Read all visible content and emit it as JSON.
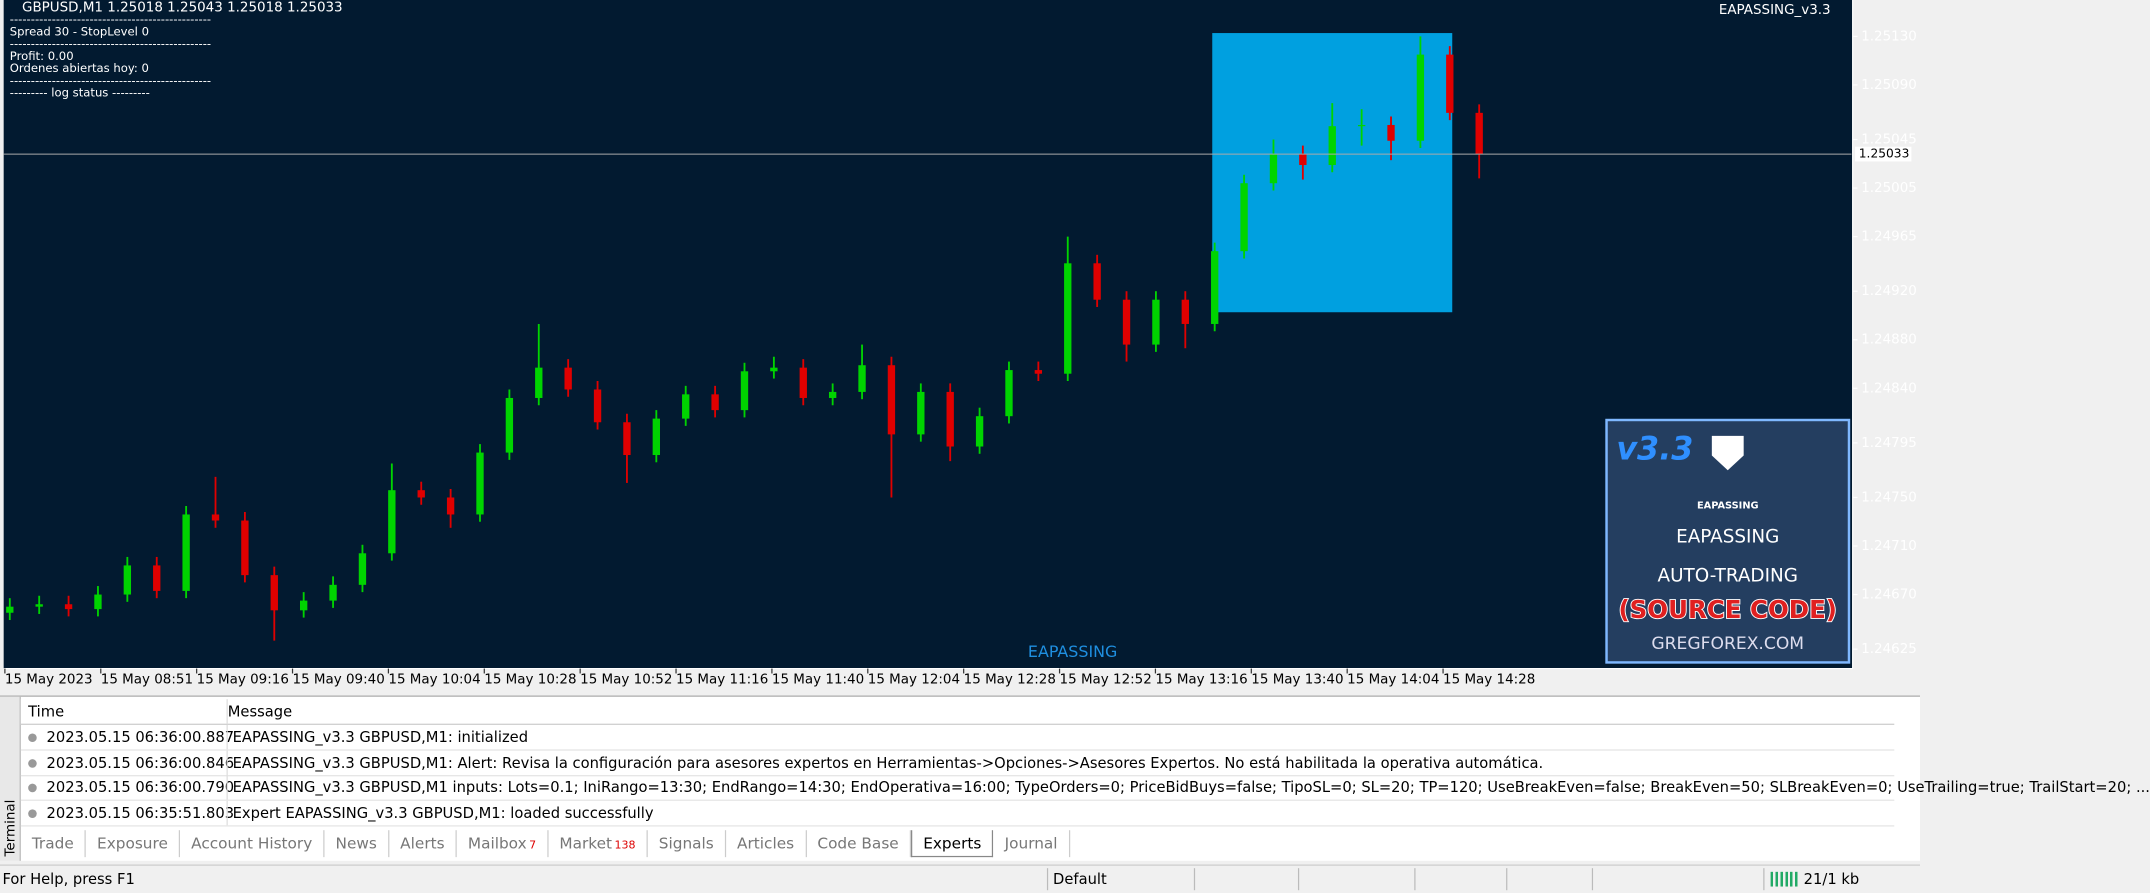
{
  "chart_data": {
    "type": "candlestick",
    "symbol_header": "GBPUSD,M1  1.25018 1.25043 1.25018 1.25033",
    "ea_name": "EAPASSING_v3.3",
    "comment_lines": [
      "------------------------------------------------",
      "Spread 30 - StopLevel 0",
      "------------------------------------------------",
      "Profit: 0.00",
      "Ordenes abiertas hoy: 0",
      "------------------------------------------------",
      "--------- log status ---------"
    ],
    "watermark": "EAPASSING",
    "x_labels": [
      "15 May 2023",
      "15 May 08:51",
      "15 May 09:16",
      "15 May 09:40",
      "15 May 10:04",
      "15 May 10:28",
      "15 May 10:52",
      "15 May 11:16",
      "15 May 11:40",
      "15 May 12:04",
      "15 May 12:28",
      "15 May 12:52",
      "15 May 13:16",
      "15 May 13:40",
      "15 May 14:04",
      "15 May 14:28"
    ],
    "ylim": [
      1.2461,
      1.2516
    ],
    "yticks": [
      {
        "value": 1.2513,
        "label": "1.25130"
      },
      {
        "value": 1.2509,
        "label": "1.25090"
      },
      {
        "value": 1.25045,
        "label": "1.25045"
      },
      {
        "value": 1.25005,
        "label": "1.25005"
      },
      {
        "value": 1.24965,
        "label": "1.24965"
      },
      {
        "value": 1.2492,
        "label": "1.24920"
      },
      {
        "value": 1.2488,
        "label": "1.24880"
      },
      {
        "value": 1.2484,
        "label": "1.24840"
      },
      {
        "value": 1.24795,
        "label": "1.24795"
      },
      {
        "value": 1.2475,
        "label": "1.24750"
      },
      {
        "value": 1.2471,
        "label": "1.24710"
      },
      {
        "value": 1.2467,
        "label": "1.24670"
      },
      {
        "value": 1.24625,
        "label": "1.24625"
      }
    ],
    "bid": 1.25033,
    "up_color": "#00d400",
    "down_color": "#e00000",
    "open": [
      1.24655,
      1.2466,
      1.24662,
      1.24658,
      1.2467,
      1.24694,
      1.24673,
      1.24736,
      1.24731,
      1.24686,
      1.24657,
      1.24665,
      1.24678,
      1.24704,
      1.24756,
      1.2475,
      1.24736,
      1.24787,
      1.24832,
      1.24857,
      1.24839,
      1.24812,
      1.24785,
      1.24815,
      1.24835,
      1.24822,
      1.24854,
      1.24857,
      1.24832,
      1.24837,
      1.24859,
      1.24802,
      1.24837,
      1.24792,
      1.24817,
      1.24855,
      1.24852,
      1.24943,
      1.24913,
      1.24876,
      1.24913,
      1.24893,
      1.24953,
      1.25009,
      1.25033,
      1.25024,
      1.25056,
      1.25057,
      1.25044,
      1.25115,
      1.25067
    ],
    "high": [
      1.24667,
      1.24669,
      1.24669,
      1.24677,
      1.24701,
      1.24701,
      1.24743,
      1.24767,
      1.24738,
      1.24693,
      1.24672,
      1.24685,
      1.24711,
      1.24778,
      1.24763,
      1.24757,
      1.24794,
      1.24839,
      1.24893,
      1.24864,
      1.24846,
      1.24819,
      1.24822,
      1.24842,
      1.24842,
      1.24861,
      1.24866,
      1.24864,
      1.24844,
      1.24876,
      1.24866,
      1.24844,
      1.24844,
      1.24824,
      1.24862,
      1.24862,
      1.24965,
      1.2495,
      1.2492,
      1.2492,
      1.2492,
      1.2496,
      1.25016,
      1.25045,
      1.2504,
      1.25075,
      1.2507,
      1.25064,
      1.2513,
      1.25122,
      1.25074
    ],
    "low": [
      1.24649,
      1.24654,
      1.24652,
      1.24652,
      1.24664,
      1.24667,
      1.24667,
      1.24725,
      1.2468,
      1.24632,
      1.24651,
      1.24659,
      1.24672,
      1.24698,
      1.24744,
      1.24725,
      1.2473,
      1.24781,
      1.24826,
      1.24833,
      1.24806,
      1.24762,
      1.24779,
      1.24809,
      1.24816,
      1.24816,
      1.24848,
      1.24826,
      1.24826,
      1.24831,
      1.2475,
      1.24796,
      1.2478,
      1.24786,
      1.24811,
      1.24846,
      1.24846,
      1.24907,
      1.24862,
      1.2487,
      1.24873,
      1.24887,
      1.24947,
      1.25003,
      1.25012,
      1.25018,
      1.2504,
      1.25028,
      1.25038,
      1.25061,
      1.25013
    ],
    "close": [
      1.2466,
      1.24662,
      1.24658,
      1.2467,
      1.24694,
      1.24673,
      1.24736,
      1.24731,
      1.24686,
      1.24657,
      1.24665,
      1.24678,
      1.24704,
      1.24756,
      1.2475,
      1.24736,
      1.24787,
      1.24832,
      1.24857,
      1.24839,
      1.24812,
      1.24785,
      1.24815,
      1.24835,
      1.24822,
      1.24854,
      1.24857,
      1.24832,
      1.24837,
      1.24859,
      1.24802,
      1.24837,
      1.24792,
      1.24817,
      1.24855,
      1.24852,
      1.24943,
      1.24913,
      1.24876,
      1.24913,
      1.24893,
      1.24953,
      1.25009,
      1.25033,
      1.25024,
      1.25056,
      1.25057,
      1.25044,
      1.25115,
      1.25067,
      1.25033
    ]
  },
  "logo": {
    "version": "v3.3",
    "brand_small": "EAPASSING",
    "brand": "EAPASSING",
    "line1": "AUTO-TRADING",
    "line2": "(SOURCE CODE)",
    "site": "GREGFOREX.COM"
  },
  "terminal": {
    "side_label": "Terminal",
    "headers": [
      "Time",
      "Message"
    ],
    "rows": [
      [
        "2023.05.15 06:36:00.887",
        "EAPASSING_v3.3 GBPUSD,M1: initialized"
      ],
      [
        "2023.05.15 06:36:00.846",
        "EAPASSING_v3.3 GBPUSD,M1: Alert: Revisa la configuración para asesores expertos en Herramientas->Opciones->Asesores Expertos. No está habilitada la operativa automática."
      ],
      [
        "2023.05.15 06:36:00.790",
        "EAPASSING_v3.3 GBPUSD,M1 inputs: Lots=0.1; IniRango=13:30; EndRango=14:30; EndOperativa=16:00; TypeOrders=0; PriceBidBuys=false; TipoSL=0; SL=20; TP=120; UseBreakEven=false; BreakEven=50; SLBreakEven=0; UseTrailing=true; TrailStart=20; ..."
      ],
      [
        "2023.05.15 06:35:51.803",
        "Expert EAPASSING_v3.3 GBPUSD,M1: loaded successfully"
      ]
    ],
    "tabs": [
      {
        "label": "Trade"
      },
      {
        "label": "Exposure"
      },
      {
        "label": "Account History"
      },
      {
        "label": "News"
      },
      {
        "label": "Alerts"
      },
      {
        "label": "Mailbox",
        "badge": 7
      },
      {
        "label": "Market",
        "badge": 138
      },
      {
        "label": "Signals"
      },
      {
        "label": "Articles"
      },
      {
        "label": "Code Base"
      },
      {
        "label": "Experts"
      },
      {
        "label": "Journal"
      }
    ],
    "active_tab": "Experts"
  },
  "status_bar": {
    "help": "For Help, press F1",
    "profile": "Default",
    "traffic": "21/1 kb"
  }
}
